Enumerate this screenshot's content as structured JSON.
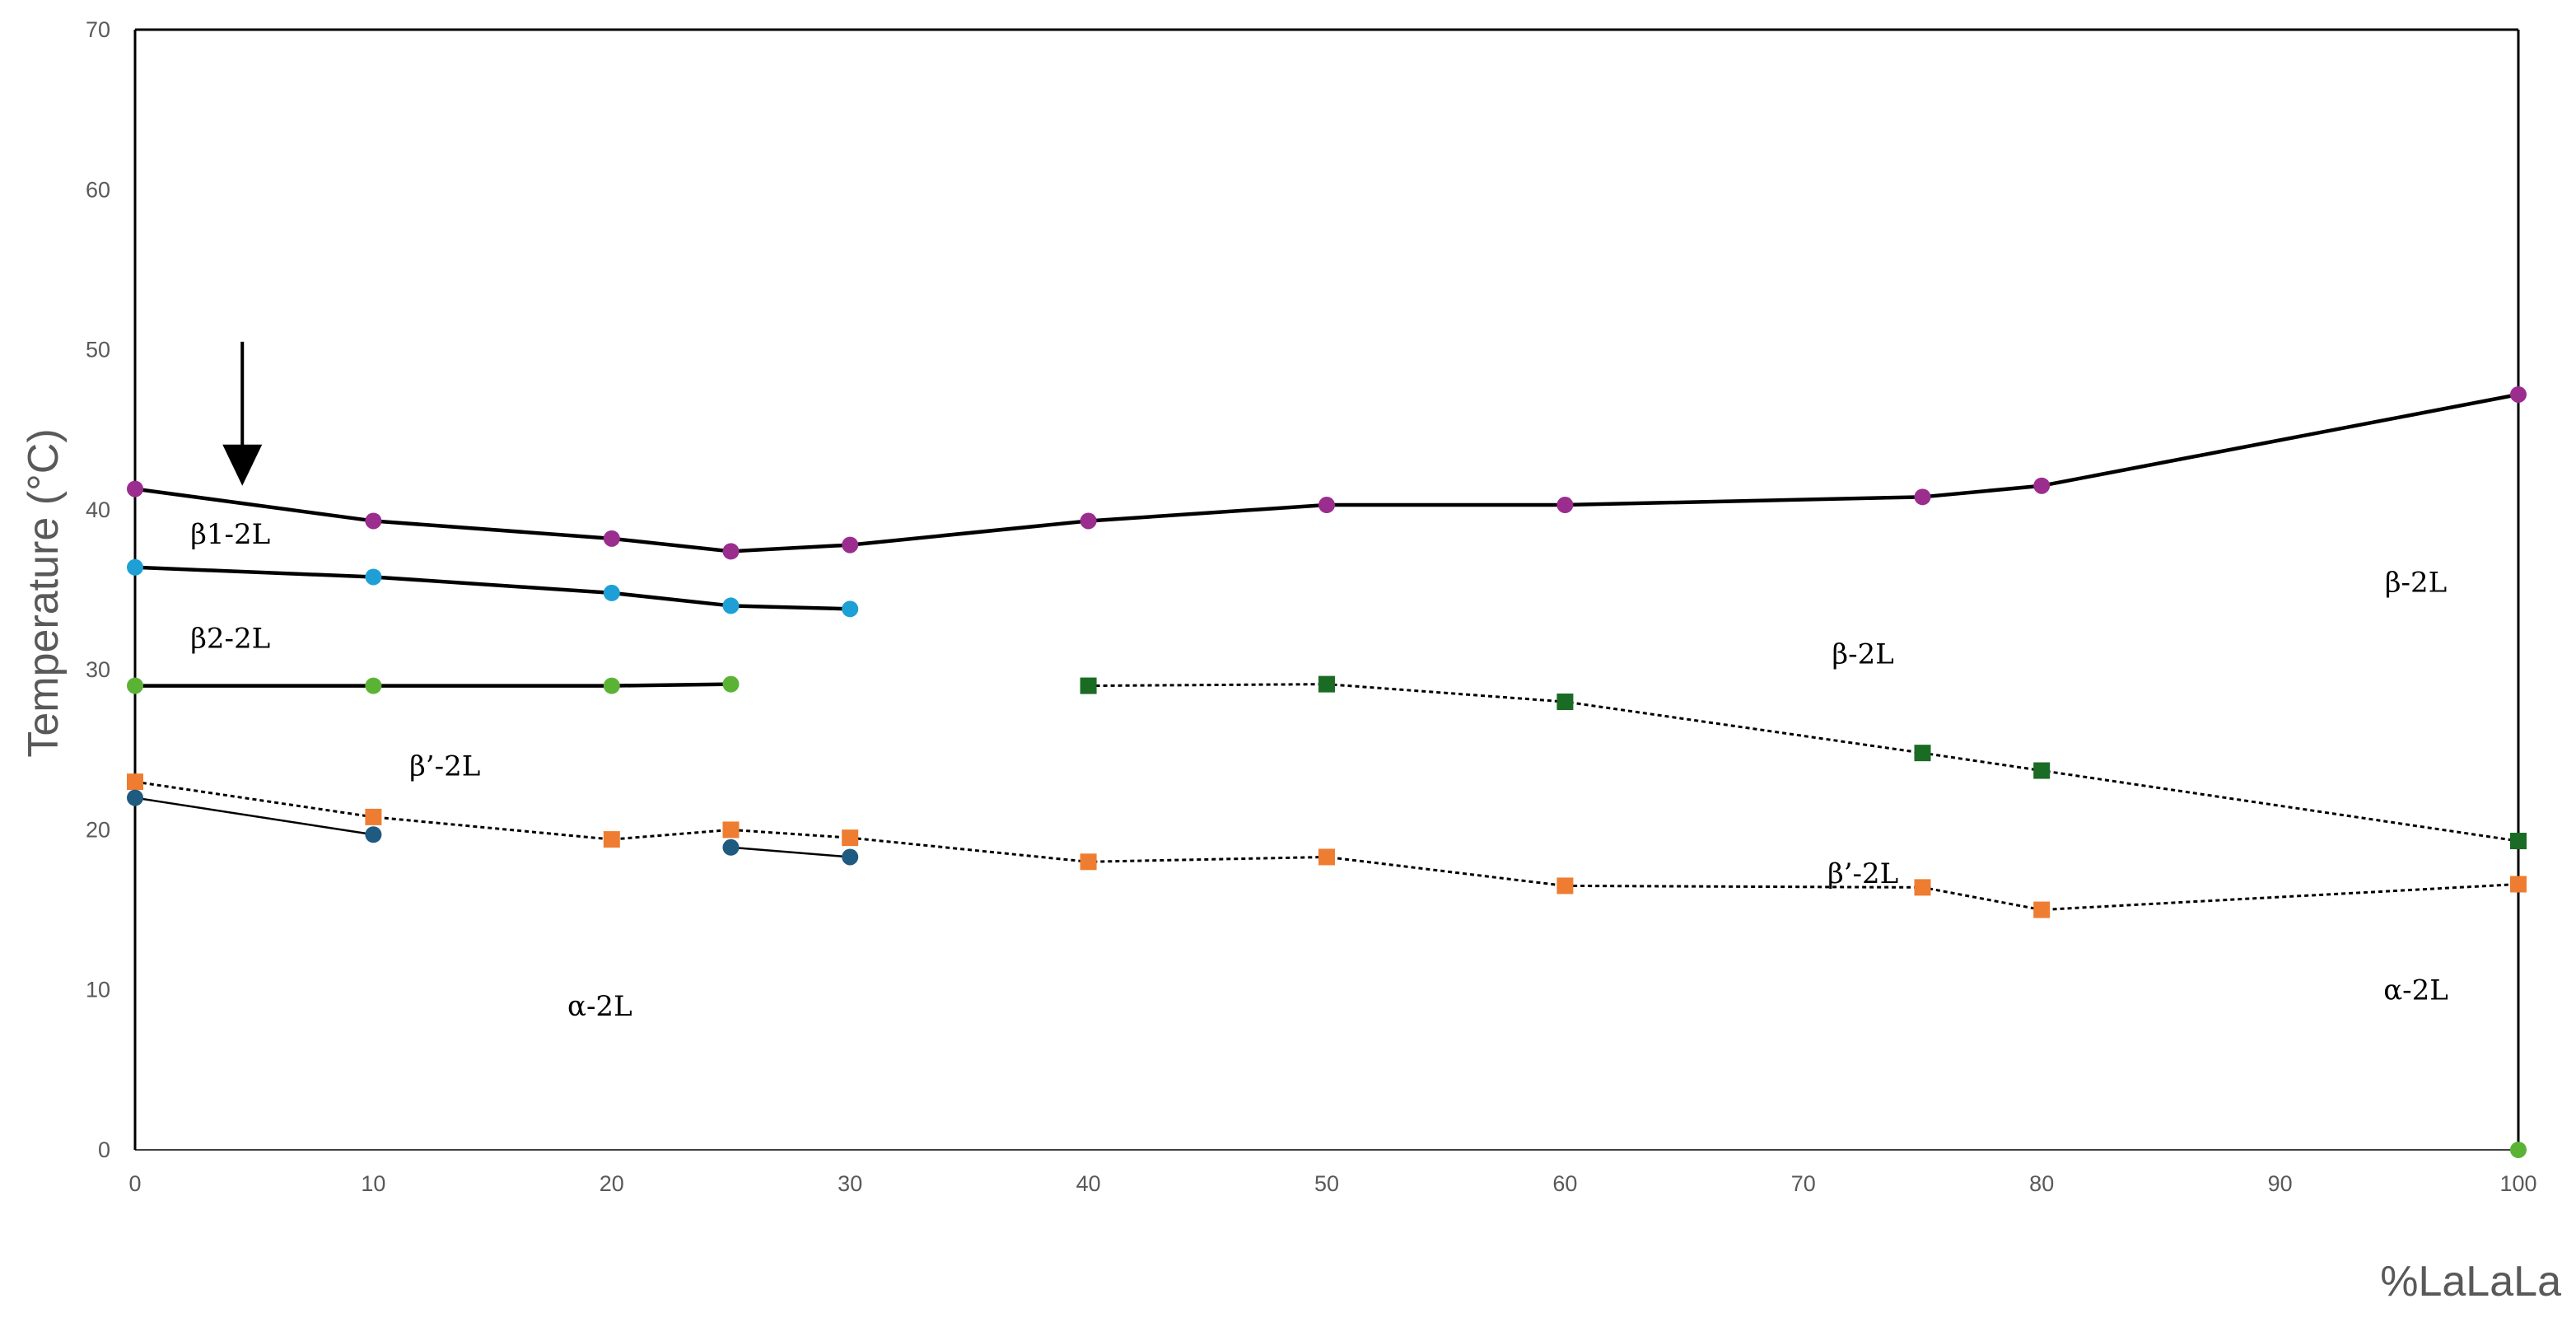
{
  "chart_data": {
    "type": "line",
    "xlabel": "%LaLaLa",
    "ylabel": "Temperature (°C)",
    "xlim": [
      0,
      100
    ],
    "ylim": [
      0,
      70
    ],
    "x_ticks": [
      0,
      10,
      20,
      30,
      40,
      50,
      60,
      70,
      80,
      90,
      100
    ],
    "y_ticks": [
      0,
      10,
      20,
      30,
      40,
      50,
      60,
      70
    ],
    "grid": false,
    "legend": "none",
    "series": [
      {
        "color": "#9b2d8f",
        "marker": "circle",
        "line": "solid-thick",
        "x": [
          0,
          10,
          20,
          25,
          30,
          40,
          50,
          60,
          75,
          80,
          100
        ],
        "y": [
          41.3,
          39.3,
          38.2,
          37.4,
          37.8,
          39.3,
          40.3,
          40.3,
          40.8,
          41.5,
          47.2
        ]
      },
      {
        "color": "#1ea0d6",
        "marker": "circle",
        "line": "solid-thick",
        "x": [
          0,
          10,
          20,
          25,
          30
        ],
        "y": [
          36.4,
          35.8,
          34.8,
          34.0,
          33.8
        ]
      },
      {
        "color": "#5bb335",
        "marker": "circle",
        "line": "solid-thick",
        "x": [
          0,
          10,
          20,
          25
        ],
        "y": [
          29.0,
          29.0,
          29.0,
          29.1
        ]
      },
      {
        "color": "#1a6b24",
        "marker": "square",
        "line": "dotted",
        "x": [
          40,
          50,
          60,
          75,
          80,
          100
        ],
        "y": [
          29.0,
          29.1,
          28.0,
          24.8,
          23.7,
          19.3
        ]
      },
      {
        "color": "#ee7d31",
        "marker": "square",
        "line": "dotted",
        "x": [
          0,
          10,
          20,
          25,
          30,
          40,
          50,
          60,
          75,
          80,
          100
        ],
        "y": [
          23.0,
          20.8,
          19.4,
          20.0,
          19.5,
          18.0,
          18.3,
          16.5,
          16.4,
          15.0,
          16.6
        ]
      },
      {
        "color": "#1f5a80",
        "marker": "circle",
        "line": "solid-thin",
        "x": [
          0,
          10
        ],
        "y": [
          22.0,
          19.7
        ]
      },
      {
        "color": "#1f5a80",
        "marker": "circle",
        "line": "solid-thin",
        "x": [
          25,
          30
        ],
        "y": [
          18.9,
          18.3
        ]
      },
      {
        "color": "#5bb335",
        "marker": "circle",
        "line": "none",
        "x": [
          100
        ],
        "y": [
          0
        ]
      }
    ],
    "annotations": [
      {
        "text": "β1-2L",
        "x": 4,
        "y": 38.5
      },
      {
        "text": "β2-2L",
        "x": 4,
        "y": 32.0
      },
      {
        "text": "β’-2L",
        "x": 13,
        "y": 24.0
      },
      {
        "text": "α-2L",
        "x": 19.5,
        "y": 9.0
      },
      {
        "text": "β-2L",
        "x": 72.5,
        "y": 31.0
      },
      {
        "text": "β’-2L",
        "x": 72.5,
        "y": 17.3
      },
      {
        "text": "β-2L",
        "x": 95.7,
        "y": 35.5
      },
      {
        "text": "α-2L",
        "x": 95.7,
        "y": 10.0
      }
    ],
    "arrow": {
      "x": 4.5,
      "y_from": 50.5,
      "y_to": 41.5
    }
  }
}
